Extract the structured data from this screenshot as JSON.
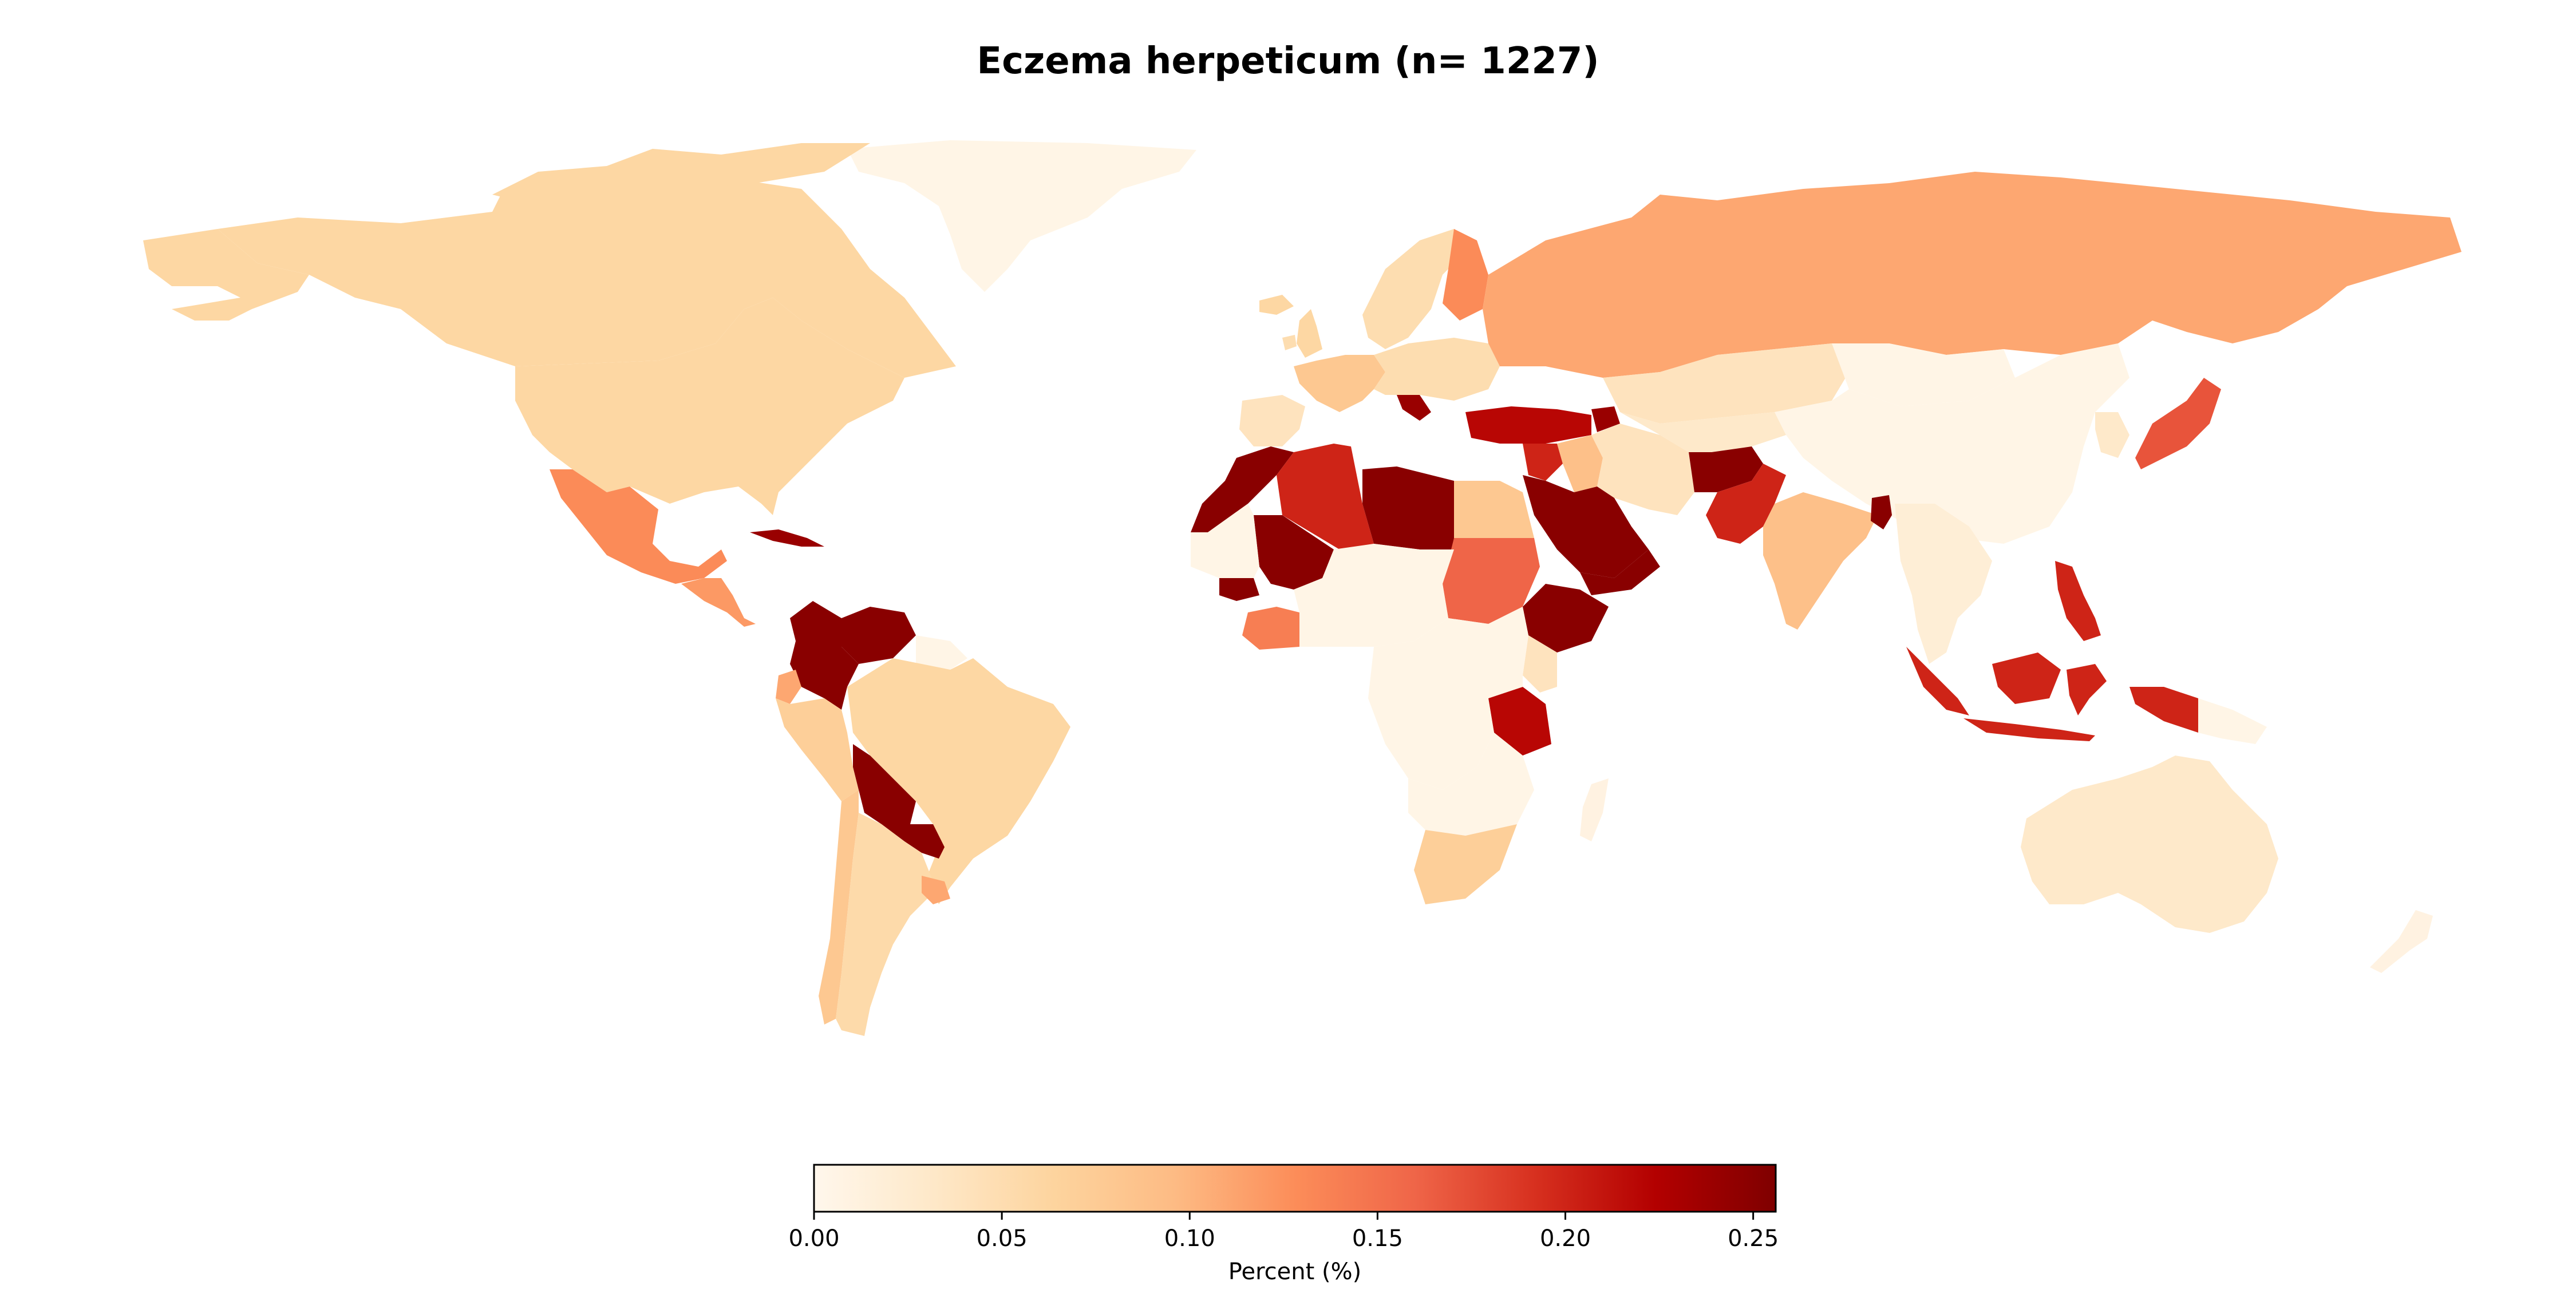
{
  "title": "Eczema herpeticum (n= 1227)",
  "colorbar": {
    "label": "Percent (%)",
    "colormap": "OrRd",
    "min": 0.0,
    "max": 0.256,
    "ticks": [
      {
        "value": 0.0,
        "label": "0.00"
      },
      {
        "value": 0.05,
        "label": "0.05"
      },
      {
        "value": 0.1,
        "label": "0.10"
      },
      {
        "value": 0.15,
        "label": "0.15"
      },
      {
        "value": 0.2,
        "label": "0.20"
      },
      {
        "value": 0.25,
        "label": "0.25"
      }
    ],
    "stops": [
      "#fff7ec",
      "#fee8c8",
      "#fdd49e",
      "#fdbb84",
      "#fc8d59",
      "#ef6548",
      "#d7301f",
      "#b30000",
      "#7f0000"
    ]
  },
  "regions": [
    {
      "name": "Greenland",
      "value": 0.005
    },
    {
      "name": "Canada",
      "value": 0.06
    },
    {
      "name": "United States",
      "value": 0.06
    },
    {
      "name": "Alaska",
      "value": 0.06
    },
    {
      "name": "Mexico",
      "value": 0.13
    },
    {
      "name": "Cuba",
      "value": 0.24
    },
    {
      "name": "Central America",
      "value": 0.12
    },
    {
      "name": "Colombia",
      "value": 0.25
    },
    {
      "name": "Venezuela",
      "value": 0.25
    },
    {
      "name": "Peru",
      "value": 0.07
    },
    {
      "name": "Ecuador",
      "value": 0.11
    },
    {
      "name": "Brazil",
      "value": 0.06
    },
    {
      "name": "Bolivia",
      "value": 0.25
    },
    {
      "name": "Paraguay",
      "value": 0.25
    },
    {
      "name": "Chile",
      "value": 0.08
    },
    {
      "name": "Argentina",
      "value": 0.055
    },
    {
      "name": "Uruguay",
      "value": 0.11
    },
    {
      "name": "Guyana",
      "value": 0.005
    },
    {
      "name": "Iceland",
      "value": 0.06
    },
    {
      "name": "United Kingdom",
      "value": 0.06
    },
    {
      "name": "Ireland",
      "value": 0.05
    },
    {
      "name": "Scandinavia",
      "value": 0.05
    },
    {
      "name": "Finland",
      "value": 0.13
    },
    {
      "name": "Western Europe",
      "value": 0.08
    },
    {
      "name": "Central Europe",
      "value": 0.05
    },
    {
      "name": "Iberia",
      "value": 0.04
    },
    {
      "name": "Balkans",
      "value": 0.24
    },
    {
      "name": "Russia",
      "value": 0.11
    },
    {
      "name": "Kazakhstan",
      "value": 0.04
    },
    {
      "name": "Mongolia",
      "value": 0.005
    },
    {
      "name": "China",
      "value": 0.005
    },
    {
      "name": "Korea",
      "value": 0.03
    },
    {
      "name": "Japan",
      "value": 0.17
    },
    {
      "name": "Turkey",
      "value": 0.22
    },
    {
      "name": "Caucasus",
      "value": 0.24
    },
    {
      "name": "Syria",
      "value": 0.2
    },
    {
      "name": "Iraq",
      "value": 0.09
    },
    {
      "name": "Iran",
      "value": 0.04
    },
    {
      "name": "Central Asia",
      "value": 0.03
    },
    {
      "name": "Afghanistan",
      "value": 0.25
    },
    {
      "name": "Pakistan",
      "value": 0.2
    },
    {
      "name": "India",
      "value": 0.09
    },
    {
      "name": "Bangladesh",
      "value": 0.25
    },
    {
      "name": "Southeast Asia",
      "value": 0.02
    },
    {
      "name": "Philippines",
      "value": 0.2
    },
    {
      "name": "Indonesia",
      "value": 0.2
    },
    {
      "name": "Papua New Guinea",
      "value": 0.005
    },
    {
      "name": "Australia",
      "value": 0.03
    },
    {
      "name": "New Zealand",
      "value": 0.01
    },
    {
      "name": "Morocco",
      "value": 0.25
    },
    {
      "name": "Algeria",
      "value": 0.2
    },
    {
      "name": "Libya",
      "value": 0.25
    },
    {
      "name": "Egypt",
      "value": 0.08
    },
    {
      "name": "Sudan",
      "value": 0.16
    },
    {
      "name": "Saudi Arabia",
      "value": 0.25
    },
    {
      "name": "Yemen",
      "value": 0.25
    },
    {
      "name": "Ethiopia",
      "value": 0.25
    },
    {
      "name": "Kenya",
      "value": 0.04
    },
    {
      "name": "Tanzania",
      "value": 0.22
    },
    {
      "name": "Mali",
      "value": 0.25
    },
    {
      "name": "Senegal",
      "value": 0.25
    },
    {
      "name": "Ghana",
      "value": 0.14
    },
    {
      "name": "Sahel",
      "value": 0.005
    },
    {
      "name": "Central Africa",
      "value": 0.005
    },
    {
      "name": "Southern Africa",
      "value": 0.005
    },
    {
      "name": "South Africa",
      "value": 0.07
    },
    {
      "name": "Madagascar",
      "value": 0.01
    }
  ]
}
